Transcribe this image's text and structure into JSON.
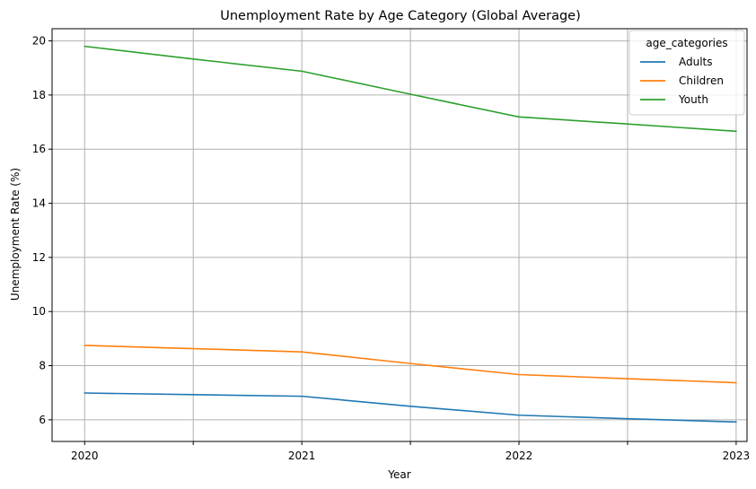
{
  "chart_data": {
    "type": "line",
    "title": "Unemployment Rate by Age Category (Global Average)",
    "xlabel": "Year",
    "ylabel": "Unemployment Rate (%)",
    "x": [
      2020,
      2021,
      2022,
      2023
    ],
    "xticks": [
      2020,
      2021,
      2022,
      2023
    ],
    "xlim": [
      2019.85,
      2023.05
    ],
    "yticks": [
      6,
      8,
      10,
      12,
      14,
      16,
      18,
      20
    ],
    "ylim": [
      5.2,
      20.45
    ],
    "grid": true,
    "legend": {
      "title": "age_categories",
      "placement": "top-right"
    },
    "series": [
      {
        "name": "Adults",
        "color": "#1f77b4",
        "x": [
          2020,
          2020.5,
          2021,
          2021.5,
          2022,
          2022.5,
          2023
        ],
        "values": [
          6.99,
          6.93,
          6.87,
          6.5,
          6.17,
          6.04,
          5.92
        ]
      },
      {
        "name": "Children",
        "color": "#ff7f0e",
        "x": [
          2020,
          2020.5,
          2021,
          2021.5,
          2022,
          2022.5,
          2023
        ],
        "values": [
          8.75,
          8.63,
          8.51,
          8.08,
          7.67,
          7.52,
          7.37
        ]
      },
      {
        "name": "Youth",
        "color": "#2ca02c",
        "x": [
          2020,
          2020.5,
          2021,
          2021.5,
          2022,
          2022.5,
          2023
        ],
        "values": [
          19.8,
          19.33,
          18.88,
          18.03,
          17.19,
          16.93,
          16.66
        ]
      }
    ]
  }
}
